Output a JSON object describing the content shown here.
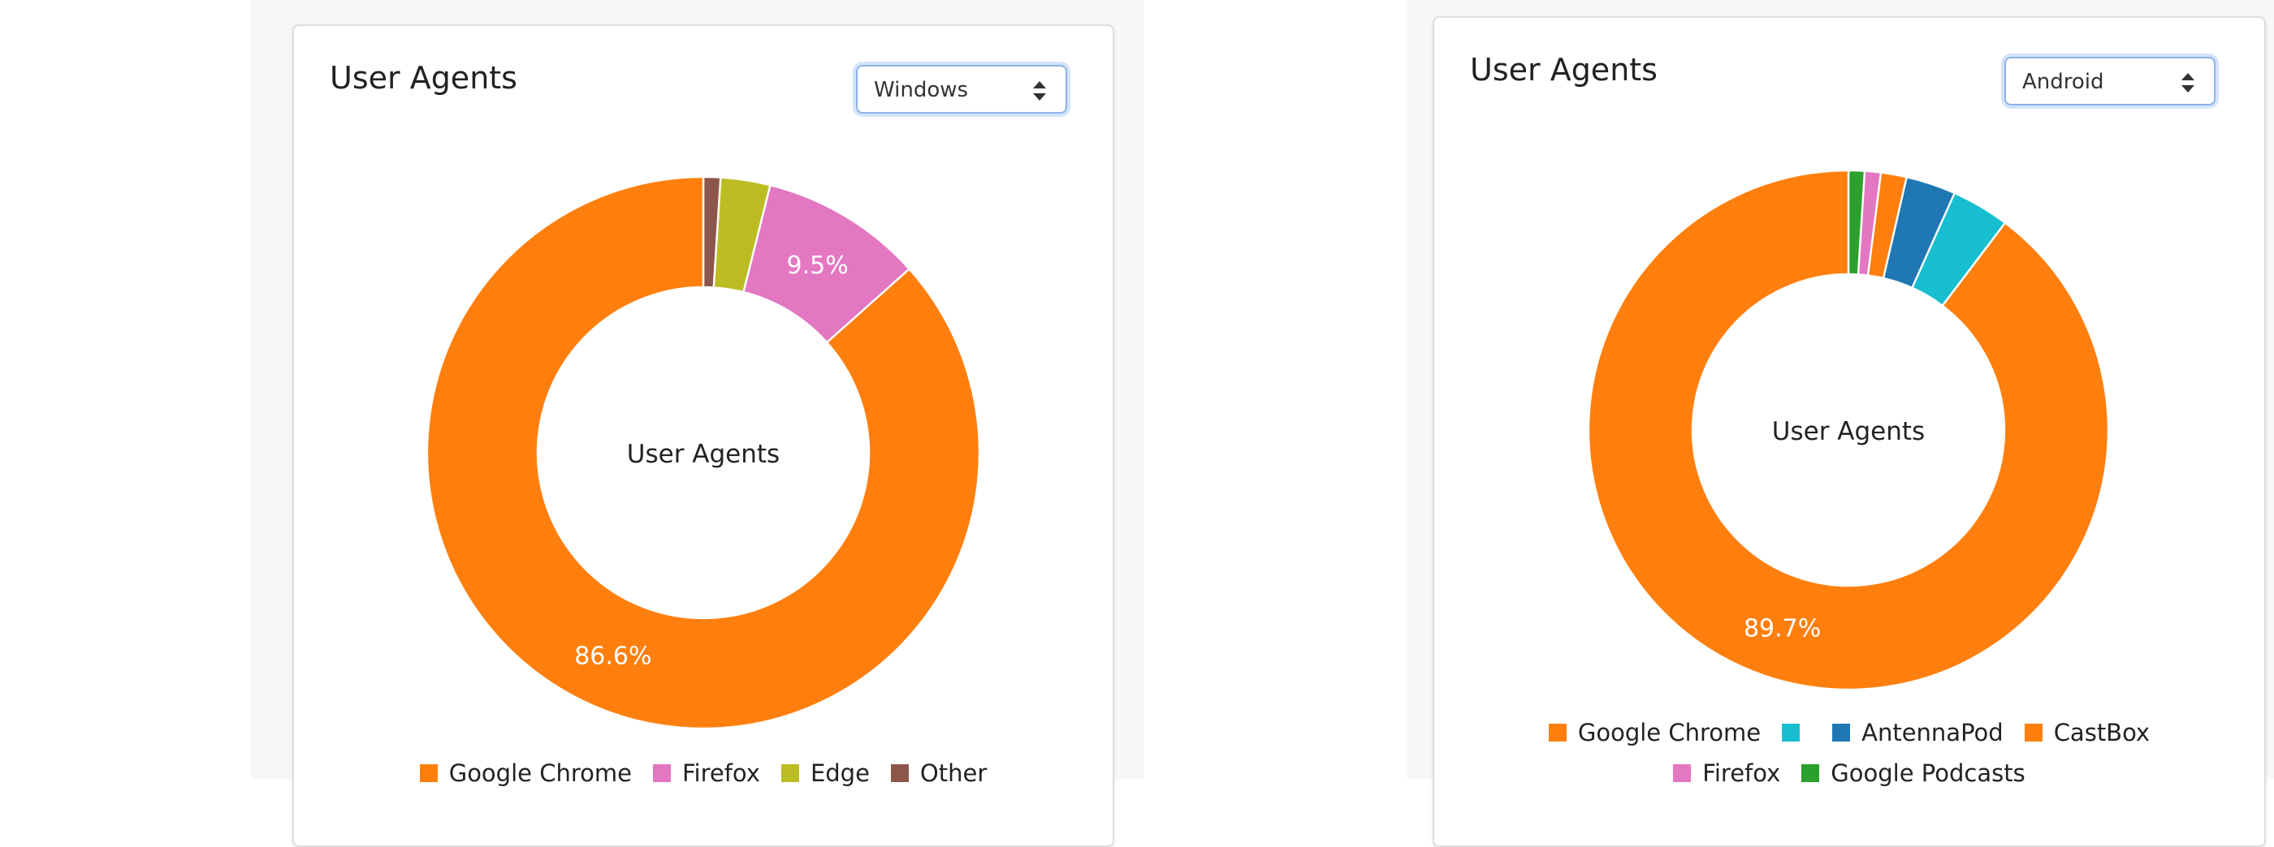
{
  "chart_data": [
    {
      "type": "pie",
      "title": "User Agents",
      "center_label": "User Agents",
      "filter": {
        "selected": "Windows"
      },
      "categories": [
        "Google Chrome",
        "Firefox",
        "Edge",
        "Other"
      ],
      "values": [
        86.6,
        9.5,
        2.9,
        1.0
      ],
      "colors": [
        "#ff7f0e",
        "#e377c2",
        "#bcbd22",
        "#8c564b"
      ],
      "data_labels": [
        "86.6%",
        "9.5%",
        "",
        ""
      ],
      "legend": {
        "position": "bottom",
        "entries": [
          "Google Chrome",
          "Firefox",
          "Edge",
          "Other"
        ]
      }
    },
    {
      "type": "pie",
      "title": "User Agents",
      "center_label": "User Agents",
      "filter": {
        "selected": "Android"
      },
      "categories": [
        "Google Chrome",
        "",
        "AntennaPod",
        "CastBox",
        "Firefox",
        "Google Podcasts"
      ],
      "values": [
        89.7,
        3.6,
        3.1,
        1.6,
        1.0,
        1.0
      ],
      "colors": [
        "#ff7f0e",
        "#17becf",
        "#1f77b4",
        "#ff7f0e",
        "#e377c2",
        "#2ca02c"
      ],
      "data_labels": [
        "89.7%",
        "",
        "",
        "",
        "",
        ""
      ],
      "legend": {
        "position": "bottom",
        "entries": [
          "Google Chrome",
          "",
          "AntennaPod",
          "CastBox",
          "Firefox",
          "Google Podcasts"
        ]
      }
    }
  ]
}
